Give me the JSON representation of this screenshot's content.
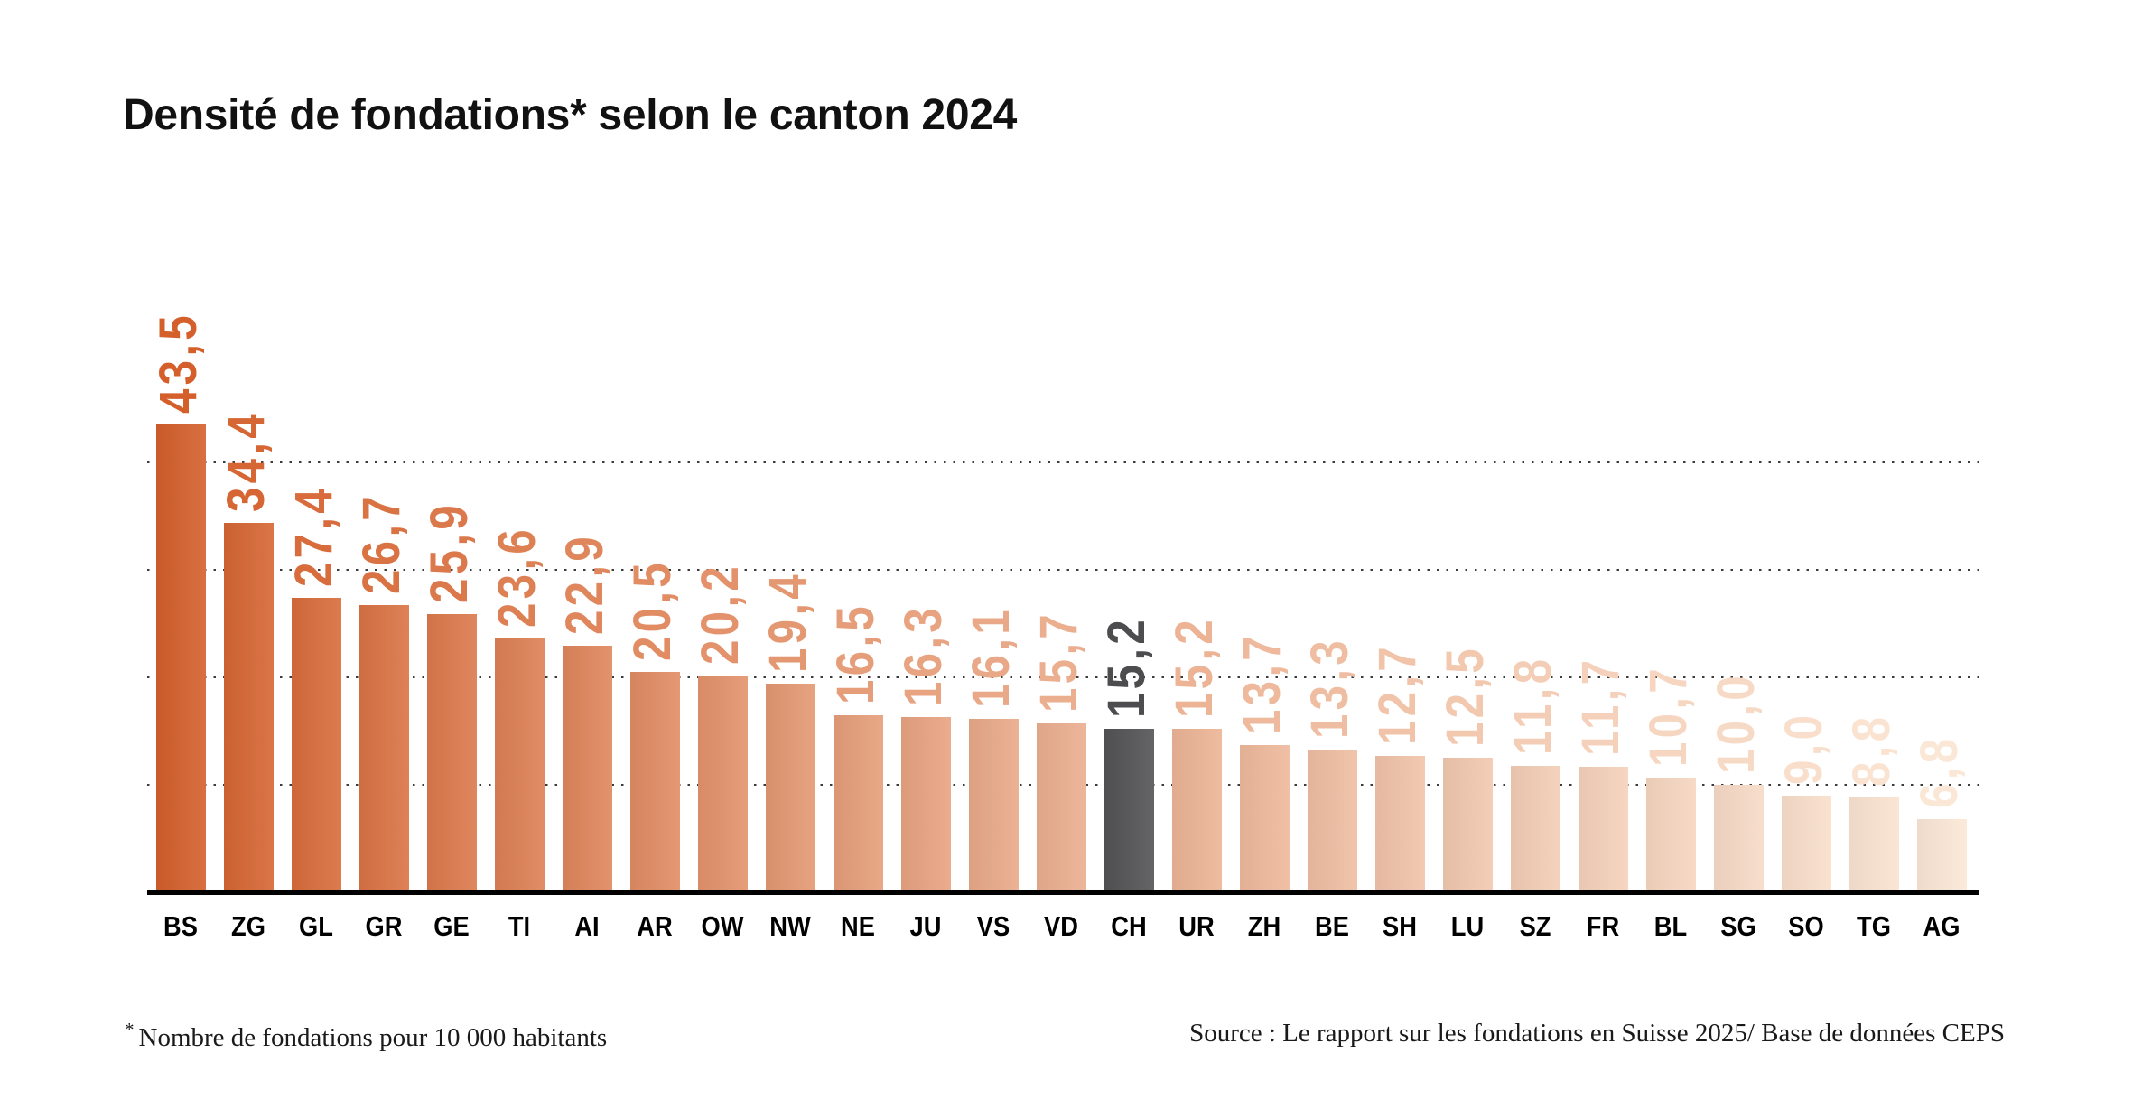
{
  "title": "Densité de fondations* selon le canton 2024",
  "footnote_marker": "*",
  "footnote_text": "Nombre de fondations pour 10 000 habitants",
  "source_text": "Source : Le rapport sur les fondations en Suisse 2025/ Base de données CEPS",
  "colors": {
    "bar_scale_start": "#d45f2b",
    "bar_scale_end": "#fbe7d6",
    "highlight_bar": "#535356",
    "highlight_label": "#4d4d4f",
    "axis": "#000000",
    "gridline": "#3b3b3b",
    "background": "#ffffff"
  },
  "chart_data": {
    "type": "bar",
    "title": "Densité de fondations* selon le canton 2024",
    "categories": [
      "BS",
      "ZG",
      "GL",
      "GR",
      "GE",
      "TI",
      "AI",
      "AR",
      "OW",
      "NW",
      "NE",
      "JU",
      "VS",
      "VD",
      "CH",
      "UR",
      "ZH",
      "BE",
      "SH",
      "LU",
      "SZ",
      "FR",
      "BL",
      "SG",
      "SO",
      "TG",
      "AG"
    ],
    "values": [
      43.5,
      34.4,
      27.4,
      26.7,
      25.9,
      23.6,
      22.9,
      20.5,
      20.2,
      19.4,
      16.5,
      16.3,
      16.1,
      15.7,
      15.2,
      15.2,
      13.7,
      13.3,
      12.7,
      12.5,
      11.8,
      11.7,
      10.7,
      10.0,
      9.0,
      8.8,
      6.8
    ],
    "value_labels": [
      "43,5",
      "34,4",
      "27,4",
      "26,7",
      "25,9",
      "23,6",
      "22,9",
      "20,5",
      "20,2",
      "19,4",
      "16,5",
      "16,3",
      "16,1",
      "15,7",
      "15,2",
      "15,2",
      "13,7",
      "13,3",
      "12,7",
      "12,5",
      "11,8",
      "11,7",
      "10,7",
      "10,0",
      "9,0",
      "8,8",
      "6,8"
    ],
    "highlight_category": "CH",
    "xlabel": "",
    "ylabel": "",
    "ylim": [
      0,
      45
    ],
    "gridlines": [
      10,
      20,
      30,
      40
    ],
    "grid": "dotted",
    "legend": "none",
    "value_label_rotation": -90,
    "bar_color_rule": "sequential fade from dark orange (highest) to pale orange (lowest); CH national average in dark grey"
  }
}
